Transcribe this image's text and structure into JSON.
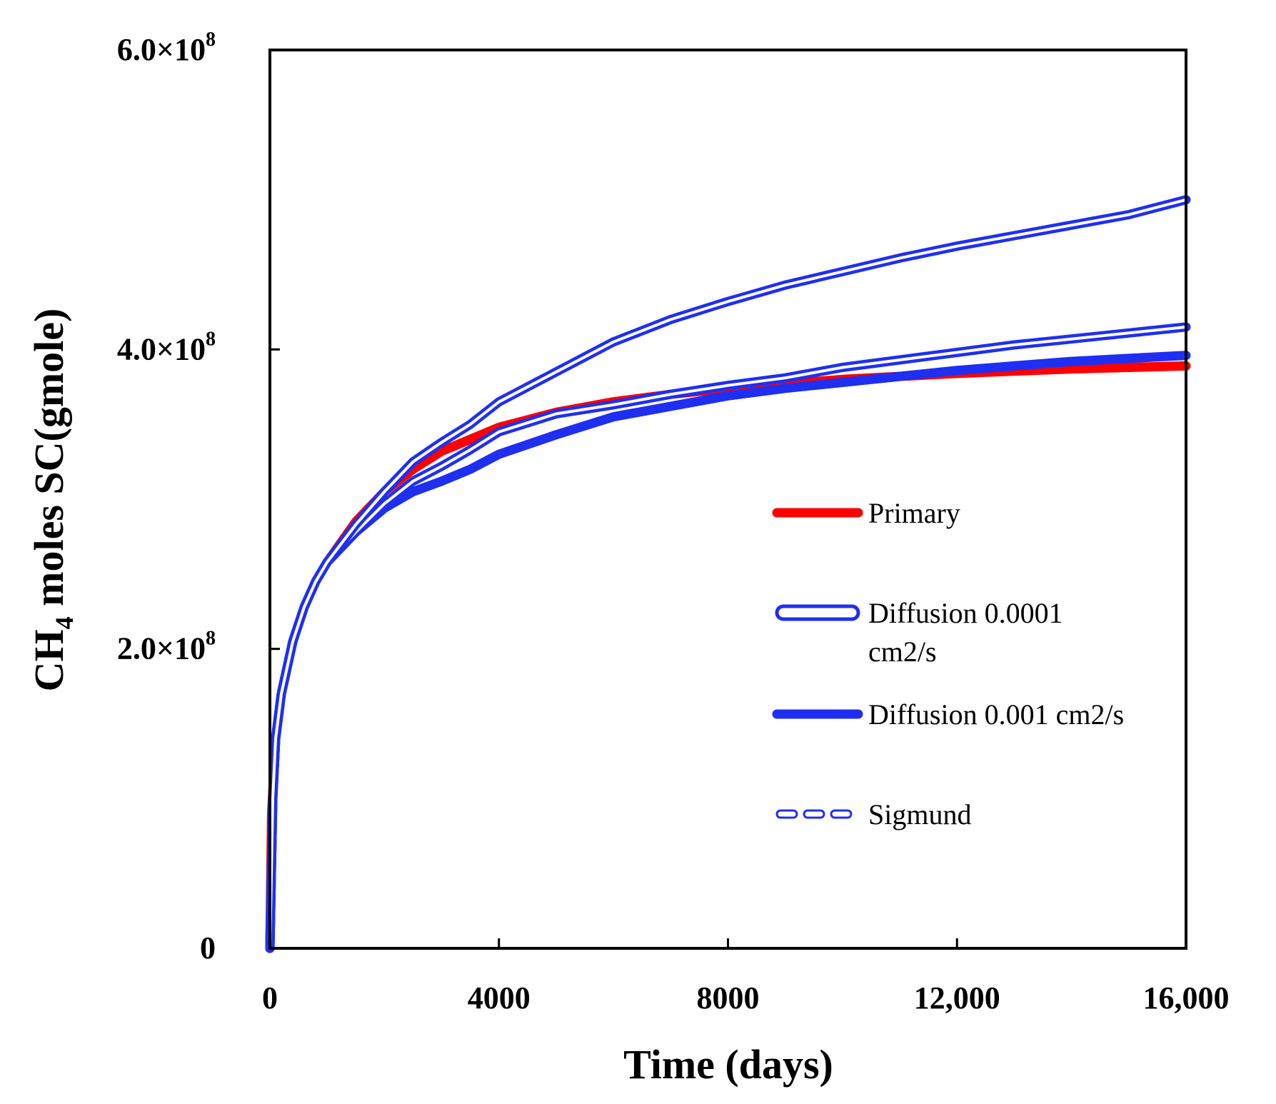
{
  "chart_data": {
    "type": "line",
    "xlabel": "Time (days)",
    "ylabel": {
      "base": "CH",
      "sub": "4",
      "rest": " moles SC(gmole)"
    },
    "xlim": [
      0,
      16000
    ],
    "ylim": [
      0,
      600000000
    ],
    "x_ticks": [
      {
        "value": 0,
        "label": "0"
      },
      {
        "value": 4000,
        "label": "4000"
      },
      {
        "value": 8000,
        "label": "8000"
      },
      {
        "value": 12000,
        "label": "12,000"
      },
      {
        "value": 16000,
        "label": "16,000"
      }
    ],
    "y_ticks": [
      {
        "value": 0,
        "label": "0"
      },
      {
        "value": 200000000,
        "label": "2.0×10",
        "exp": "8"
      },
      {
        "value": 400000000,
        "label": "4.0×10",
        "exp": "8"
      },
      {
        "value": 600000000,
        "label": "6.0×10",
        "exp": "8"
      }
    ],
    "grid": false,
    "legend_position": "right-middle",
    "series": [
      {
        "name": "Primary",
        "color": "#ff0000",
        "style": "solid-thick",
        "x": [
          0,
          30,
          100,
          200,
          400,
          600,
          800,
          1000,
          1500,
          2000,
          2500,
          3000,
          4000,
          5000,
          6000,
          7000,
          8000,
          10000,
          12000,
          14000,
          16000
        ],
        "y": [
          0,
          90000000,
          140000000,
          170000000,
          205000000,
          228000000,
          245000000,
          258000000,
          285000000,
          305000000,
          320000000,
          332000000,
          348000000,
          358000000,
          365000000,
          370000000,
          374000000,
          380000000,
          384000000,
          387000000,
          389000000
        ]
      },
      {
        "name": "Diffusion 0.0001 cm2/s",
        "color": "#1f2ff2",
        "style": "hollow",
        "x": [
          0,
          50,
          100,
          200,
          400,
          600,
          800,
          1000,
          1500,
          2000,
          2500,
          3000,
          3500,
          4000,
          5000,
          6000,
          7000,
          8000,
          9000,
          10000,
          11000,
          12000,
          13000,
          14000,
          15000,
          16000
        ],
        "y": [
          0,
          100000000,
          140000000,
          170000000,
          205000000,
          228000000,
          245000000,
          258000000,
          278000000,
          297000000,
          312000000,
          322000000,
          333000000,
          345000000,
          357000000,
          363000000,
          370000000,
          376000000,
          381000000,
          388000000,
          393000000,
          398000000,
          403000000,
          407000000,
          411000000,
          415000000
        ]
      },
      {
        "name": "Diffusion 0.001 cm2/s",
        "color": "#1f2ff2",
        "style": "solid-thick",
        "x": [
          0,
          50,
          100,
          200,
          400,
          600,
          800,
          1000,
          1500,
          2000,
          2500,
          3000,
          3500,
          4000,
          5000,
          6000,
          7000,
          8000,
          9000,
          10000,
          11000,
          12000,
          13000,
          14000,
          15000,
          16000
        ],
        "y": [
          0,
          100000000,
          140000000,
          170000000,
          205000000,
          228000000,
          245000000,
          258000000,
          278000000,
          294000000,
          305000000,
          312000000,
          320000000,
          330000000,
          343000000,
          355000000,
          362000000,
          369000000,
          374000000,
          378000000,
          382000000,
          386000000,
          389000000,
          392000000,
          394000000,
          396000000
        ]
      },
      {
        "name": "Sigmund",
        "color": "#1f2ff2",
        "style": "hollow-dashed",
        "x": [
          0,
          50,
          100,
          200,
          400,
          600,
          800,
          1000,
          1500,
          2000,
          2500,
          3000,
          3500,
          4000,
          4500,
          5000,
          6000,
          7000,
          8000,
          9000,
          10000,
          11000,
          12000,
          13000,
          14000,
          15000,
          16000
        ],
        "y": [
          0,
          100000000,
          140000000,
          170000000,
          205000000,
          228000000,
          245000000,
          258000000,
          283000000,
          305000000,
          325000000,
          338000000,
          350000000,
          365000000,
          375000000,
          385000000,
          405000000,
          420000000,
          432000000,
          443000000,
          452000000,
          461000000,
          469000000,
          476000000,
          483000000,
          490000000,
          500000000
        ]
      }
    ]
  }
}
